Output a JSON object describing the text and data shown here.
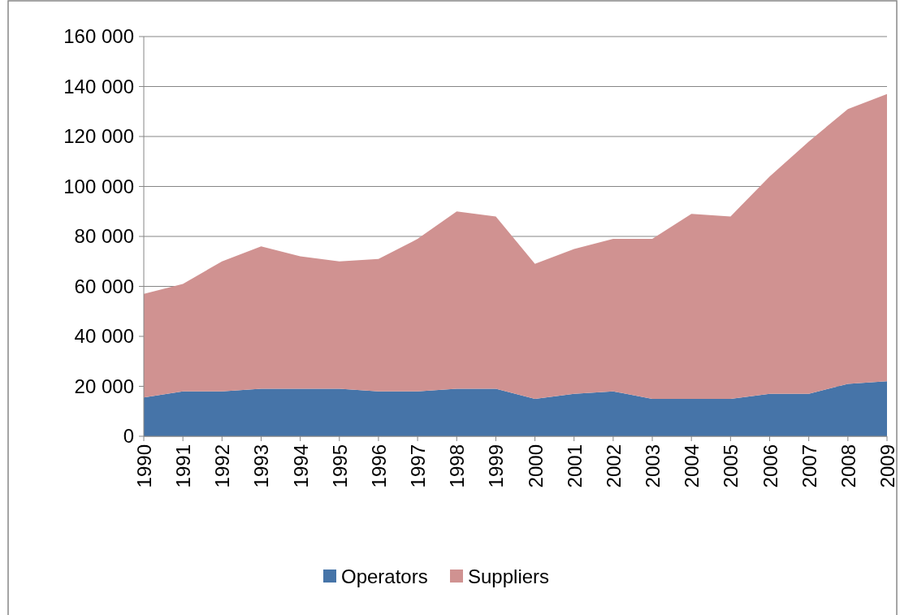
{
  "chart_data": {
    "type": "area",
    "stacked": true,
    "categories": [
      "1990",
      "1991",
      "1992",
      "1993",
      "1994",
      "1995",
      "1996",
      "1997",
      "1998",
      "1999",
      "2000",
      "2001",
      "2002",
      "2003",
      "2004",
      "2005",
      "2006",
      "2007",
      "2008",
      "2009"
    ],
    "series": [
      {
        "name": "Operators",
        "color": "#4674a8",
        "values": [
          15500,
          18000,
          18000,
          19000,
          19000,
          19000,
          18000,
          18000,
          19000,
          19000,
          15000,
          17000,
          18000,
          15000,
          15000,
          15000,
          17000,
          17000,
          21000,
          22000
        ]
      },
      {
        "name": "Suppliers",
        "color": "#d09291",
        "values": [
          41500,
          43000,
          52000,
          57000,
          53000,
          51000,
          53000,
          61000,
          71000,
          69000,
          54000,
          58000,
          61000,
          64000,
          74000,
          73000,
          87000,
          101000,
          110000,
          115000
        ]
      }
    ],
    "ylim": [
      0,
      160000
    ],
    "yticks": [
      {
        "value": 0,
        "label": "0"
      },
      {
        "value": 20000,
        "label": "20 000"
      },
      {
        "value": 40000,
        "label": "40 000"
      },
      {
        "value": 60000,
        "label": "60 000"
      },
      {
        "value": 80000,
        "label": "80 000"
      },
      {
        "value": 100000,
        "label": "100 000"
      },
      {
        "value": 120000,
        "label": "120 000"
      },
      {
        "value": 140000,
        "label": "140 000"
      },
      {
        "value": 160000,
        "label": "160 000"
      }
    ],
    "grid": "y",
    "legend": "bottom"
  }
}
